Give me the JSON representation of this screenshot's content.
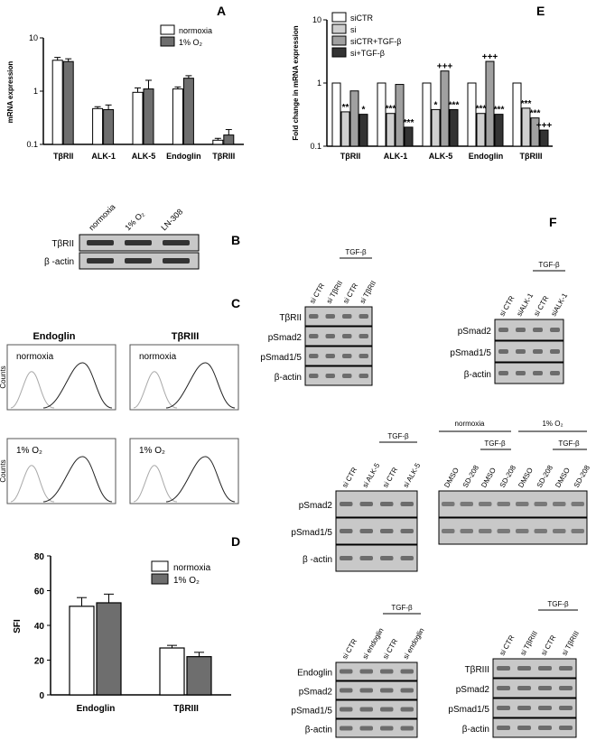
{
  "panels": {
    "A": "A",
    "B": "B",
    "C": "C",
    "D": "D",
    "E": "E",
    "F": "F"
  },
  "colors": {
    "white_bar": "#ffffff",
    "gray_bar": "#6e6e6e",
    "light_bar": "#cfcfcf",
    "black_bar": "#333333",
    "mid_bar": "#a0a0a0"
  },
  "chart_data": [
    {
      "panel": "A",
      "type": "bar",
      "log_scale": true,
      "ylabel": "mRNA expression",
      "ylim": [
        0.1,
        10
      ],
      "yticks": [
        "10",
        "1",
        "0.1"
      ],
      "categories": [
        "TβRII",
        "ALK-1",
        "ALK-5",
        "Endoglin",
        "TβRIII"
      ],
      "series": [
        {
          "name": "normoxia",
          "values": [
            3.8,
            0.47,
            0.95,
            1.1,
            0.12
          ],
          "errors": [
            0.5,
            0.04,
            0.2,
            0.1,
            0.01
          ]
        },
        {
          "name": "1% O₂",
          "values": [
            3.6,
            0.45,
            1.1,
            1.75,
            0.15
          ],
          "errors": [
            0.45,
            0.1,
            0.5,
            0.2,
            0.04
          ]
        }
      ],
      "legend": "top-right"
    },
    {
      "panel": "E",
      "type": "bar",
      "log_scale": true,
      "ylabel": "Fold change in mRNA expression",
      "ylim": [
        0.1,
        10
      ],
      "yticks": [
        "10",
        "1",
        "0.1"
      ],
      "categories": [
        "TβRII",
        "ALK-1",
        "ALK-5",
        "Endoglin",
        "TβRIII"
      ],
      "series": [
        {
          "name": "siCTR",
          "values": [
            1,
            1,
            1,
            1,
            1
          ]
        },
        {
          "name": "si",
          "values": [
            0.35,
            0.33,
            0.38,
            0.33,
            0.4
          ]
        },
        {
          "name": "siCTR+TGF-β",
          "values": [
            0.75,
            0.95,
            1.55,
            2.2,
            0.28
          ]
        },
        {
          "name": "si+TGF-β",
          "values": [
            0.32,
            0.2,
            0.38,
            0.32,
            0.18
          ]
        }
      ],
      "annotations": [
        {
          "cat": 0,
          "series": 1,
          "text": "**"
        },
        {
          "cat": 0,
          "series": 3,
          "text": "*"
        },
        {
          "cat": 1,
          "series": 1,
          "text": "***"
        },
        {
          "cat": 1,
          "series": 3,
          "text": "***"
        },
        {
          "cat": 2,
          "series": 1,
          "text": "*"
        },
        {
          "cat": 2,
          "series": 2,
          "text": "+++"
        },
        {
          "cat": 2,
          "series": 3,
          "text": "***"
        },
        {
          "cat": 3,
          "series": 1,
          "text": "***"
        },
        {
          "cat": 3,
          "series": 2,
          "text": "+++"
        },
        {
          "cat": 3,
          "series": 3,
          "text": "***"
        },
        {
          "cat": 4,
          "series": 1,
          "text": "***"
        },
        {
          "cat": 4,
          "series": 2,
          "text": "***"
        },
        {
          "cat": 4,
          "series": 3,
          "text": "+++"
        }
      ],
      "legend": "top-left"
    },
    {
      "panel": "D",
      "type": "bar",
      "ylabel": "SFI",
      "ylim": [
        0,
        80
      ],
      "yticks": [
        "80",
        "60",
        "40",
        "20",
        "0"
      ],
      "categories": [
        "Endoglin",
        "TβRIII"
      ],
      "series": [
        {
          "name": "normoxia",
          "values": [
            51,
            27
          ],
          "errors": [
            5,
            1.5
          ]
        },
        {
          "name": "1% O₂",
          "values": [
            53,
            22
          ],
          "errors": [
            5,
            2.5
          ]
        }
      ],
      "legend": "top-right"
    }
  ],
  "blotB": {
    "lanes": [
      "normoxia",
      "1% O₂",
      "LN-308"
    ],
    "rows": [
      "TβRII",
      "β -actin"
    ]
  },
  "flow": {
    "cols": [
      "Endoglin",
      "TβRIII"
    ],
    "rows": [
      "normoxia",
      "1% O₂"
    ],
    "ylabel": "Counts"
  },
  "blotsF": [
    {
      "tgf": "TGF-β",
      "lanes": [
        "si CTR",
        "si TβRII",
        "si CTR",
        "si TβRII"
      ],
      "rows": [
        "TβRII",
        "pSmad2",
        "pSmad1/5",
        "β-actin"
      ]
    },
    {
      "tgf": "TGF-β",
      "lanes": [
        "si CTR",
        "siALK-1",
        "si CTR",
        "siALK-1"
      ],
      "rows": [
        "pSmad2",
        "pSmad1/5",
        "β-actin"
      ]
    },
    {
      "tgf": "TGF-β",
      "lanes": [
        "si CTR",
        "si ALK-5",
        "si CTR",
        "si ALK-5"
      ],
      "rows": [
        "pSmad2",
        "pSmad1/5",
        "β -actin"
      ]
    },
    {
      "cond1": "normoxia",
      "cond2": "1% O₂",
      "tgf": "TGF-β",
      "lanes": [
        "DMSO",
        "SD-208",
        "DMSO",
        "SD-208",
        "DMSO",
        "SD-208",
        "DMSO",
        "SD-208"
      ]
    },
    {
      "tgf": "TGF-β",
      "lanes": [
        "si CTR",
        "si endoglin",
        "si CTR",
        "si endoglin"
      ],
      "rows": [
        "Endoglin",
        "pSmad2",
        "pSmad1/5",
        "β-actin"
      ]
    },
    {
      "tgf": "TGF-β",
      "lanes": [
        "si CTR",
        "si TβRIII",
        "si CTR",
        "si TβRIII"
      ],
      "rows": [
        "TβRIII",
        "pSmad2",
        "pSmad1/5",
        "β-actin"
      ]
    }
  ]
}
